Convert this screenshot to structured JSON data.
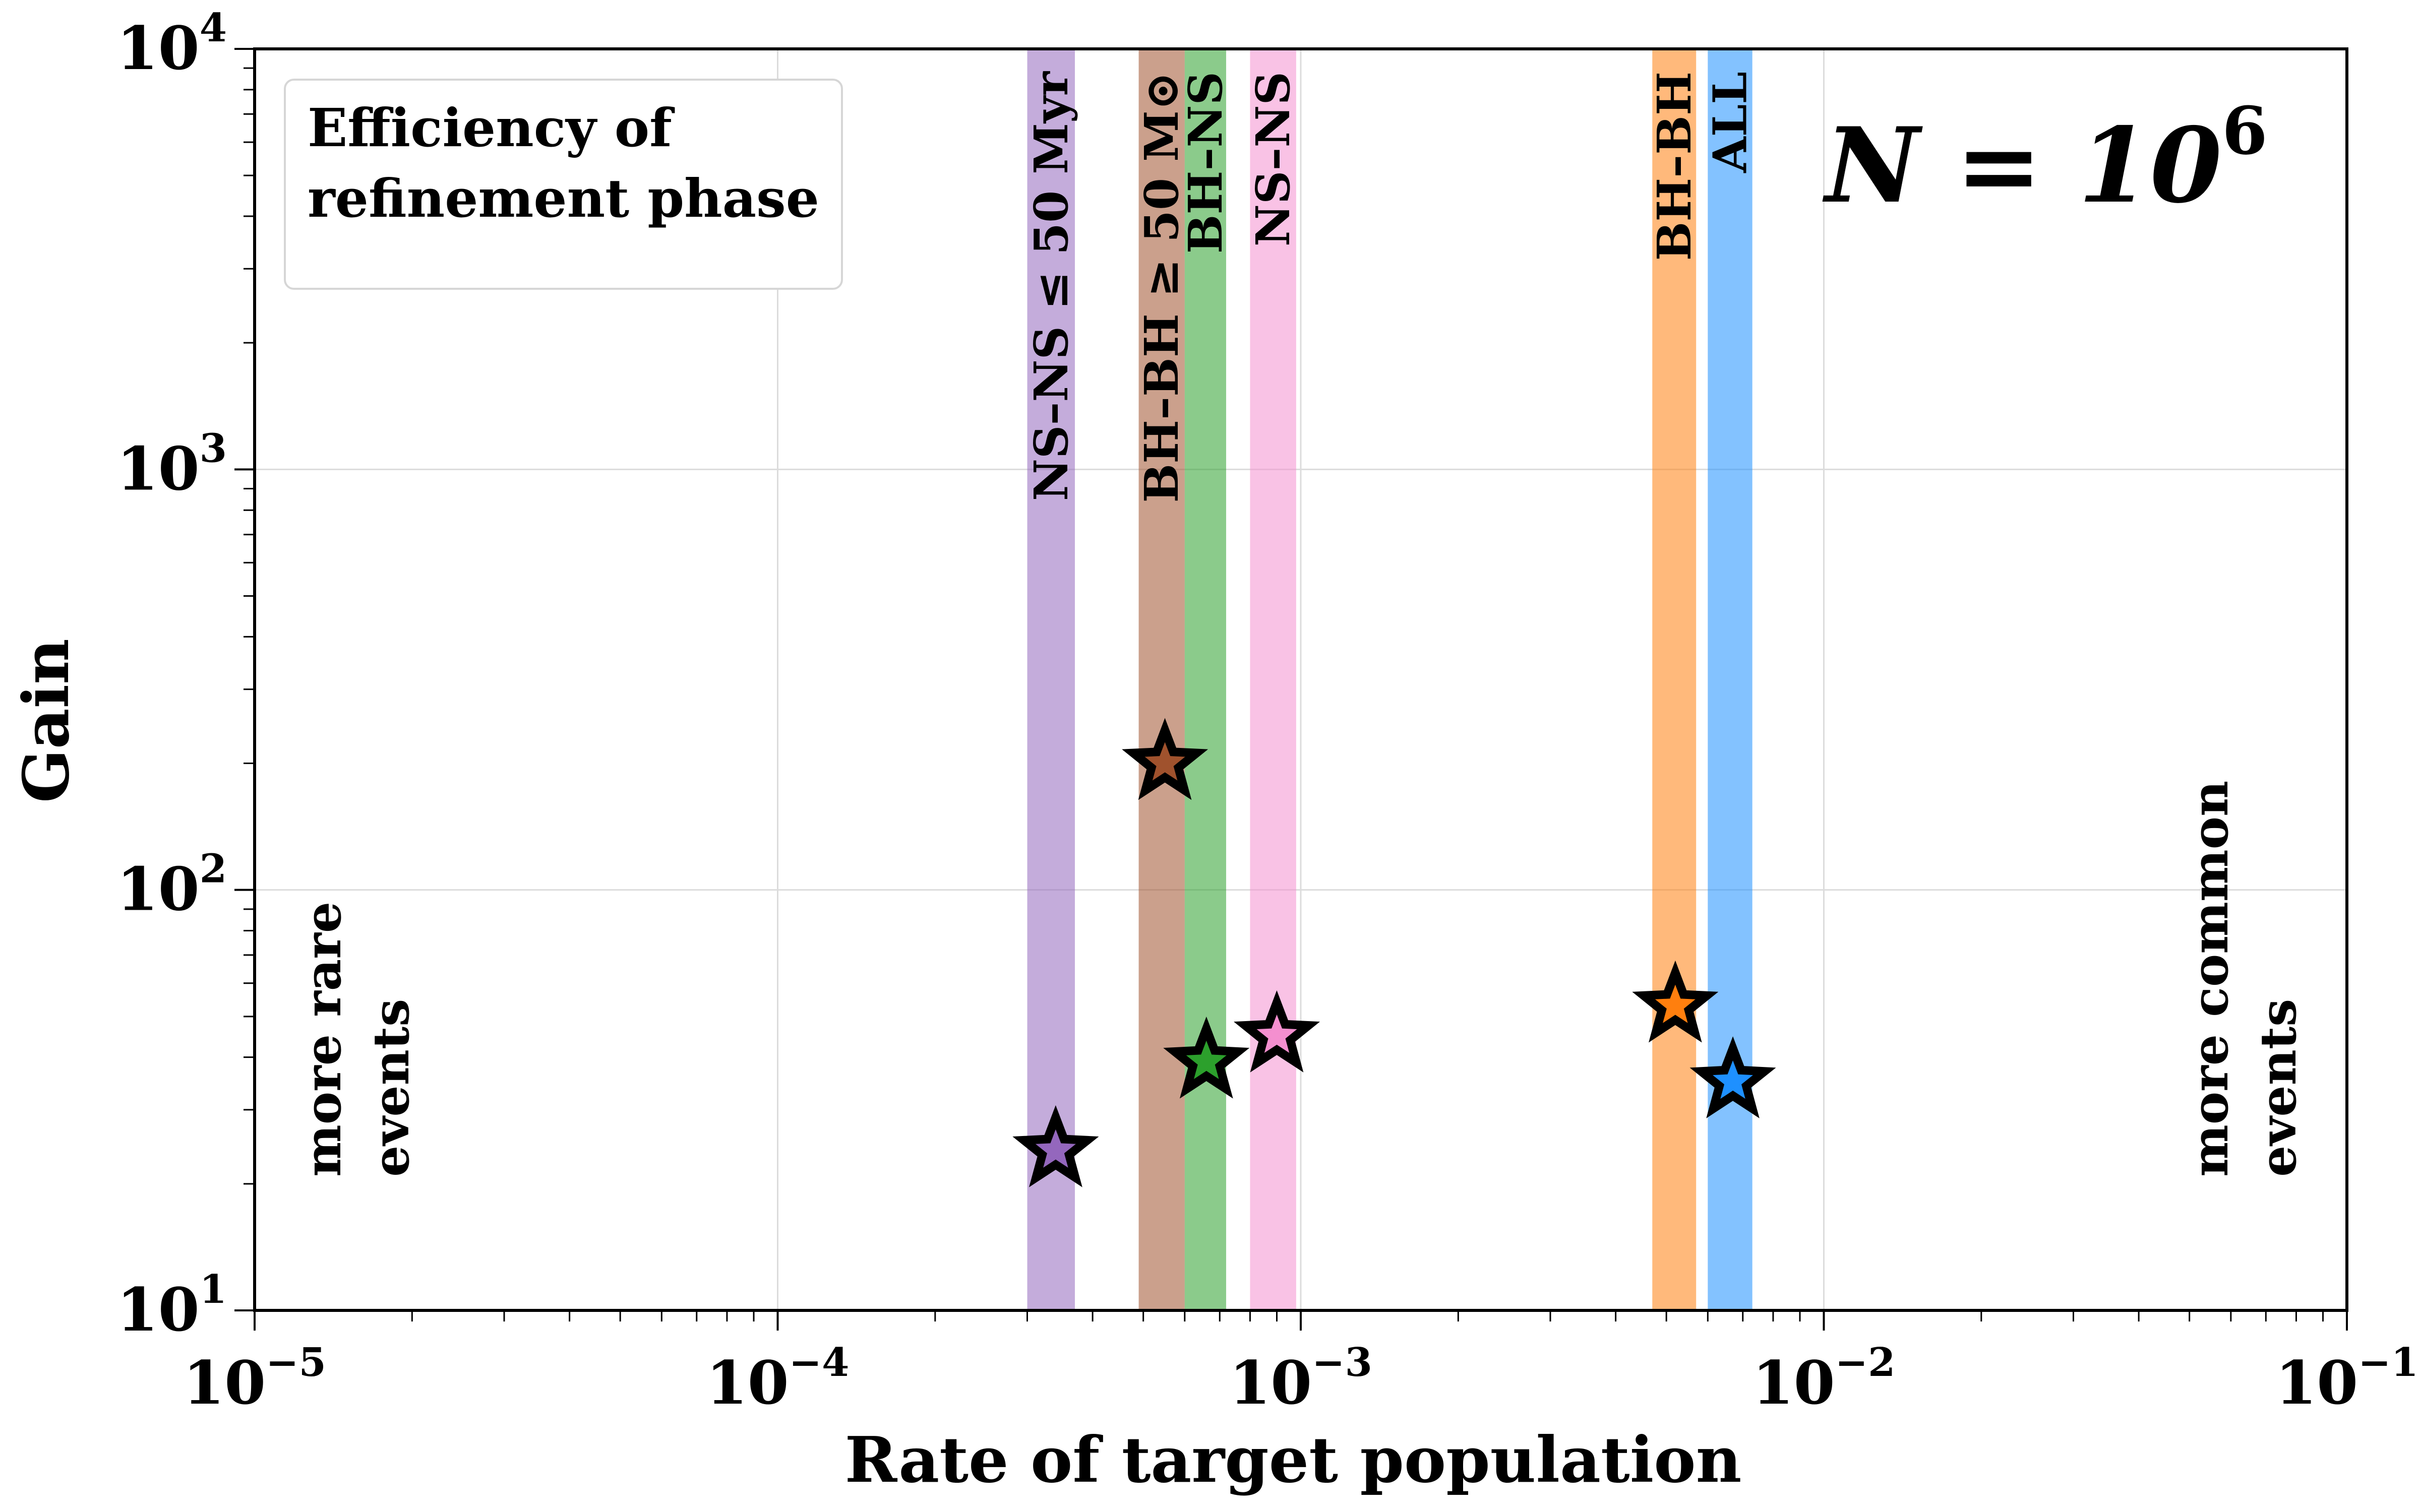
{
  "chart_data": {
    "type": "scatter",
    "xlabel": "Rate of target population",
    "ylabel": "Gain",
    "xscale": "log",
    "yscale": "log",
    "xlim": [
      1e-05,
      0.1
    ],
    "ylim": [
      10,
      10000
    ],
    "grid": true,
    "x_ticks": [
      {
        "value": 1e-05,
        "base": "10",
        "exp": "−5"
      },
      {
        "value": 0.0001,
        "base": "10",
        "exp": "−4"
      },
      {
        "value": 0.001,
        "base": "10",
        "exp": "−3"
      },
      {
        "value": 0.01,
        "base": "10",
        "exp": "−2"
      },
      {
        "value": 0.1,
        "base": "10",
        "exp": "−1"
      }
    ],
    "y_ticks": [
      {
        "value": 10,
        "base": "10",
        "exp": "1"
      },
      {
        "value": 100,
        "base": "10",
        "exp": "2"
      },
      {
        "value": 1000,
        "base": "10",
        "exp": "3"
      },
      {
        "value": 10000,
        "base": "10",
        "exp": "4"
      }
    ],
    "legend": {
      "placement": "top-left",
      "lines": [
        "Efficiency of",
        "refinement phase"
      ]
    },
    "annotation_main": {
      "prefix": "N = 10",
      "exp": "6"
    },
    "annotation_left": [
      "more rare",
      "events"
    ],
    "annotation_right": [
      "more common",
      "events"
    ],
    "series": [
      {
        "label": "NS–NS ≤ 50 Myr",
        "color": "#9467bd",
        "band": [
          0.0003,
          0.00037
        ],
        "x": 0.00034,
        "y": 24
      },
      {
        "label": "BH–BH ≥ 50 M⊙",
        "color": "#a0522d",
        "band": [
          0.00049,
          0.0006
        ],
        "x": 0.00055,
        "y": 200
      },
      {
        "label": "BH–NS",
        "color": "#2ca02c",
        "band": [
          0.0006,
          0.00072
        ],
        "x": 0.00066,
        "y": 39
      },
      {
        "label": "NS–NS",
        "color": "#f48fcf",
        "band": [
          0.0008,
          0.00098
        ],
        "x": 0.0009,
        "y": 45
      },
      {
        "label": "BH–BH",
        "color": "#ff7f0e",
        "band": [
          0.0047,
          0.0057
        ],
        "x": 0.0052,
        "y": 53
      },
      {
        "label": "ALL",
        "color": "#1e90ff",
        "band": [
          0.006,
          0.0073
        ],
        "x": 0.0067,
        "y": 35
      }
    ]
  }
}
